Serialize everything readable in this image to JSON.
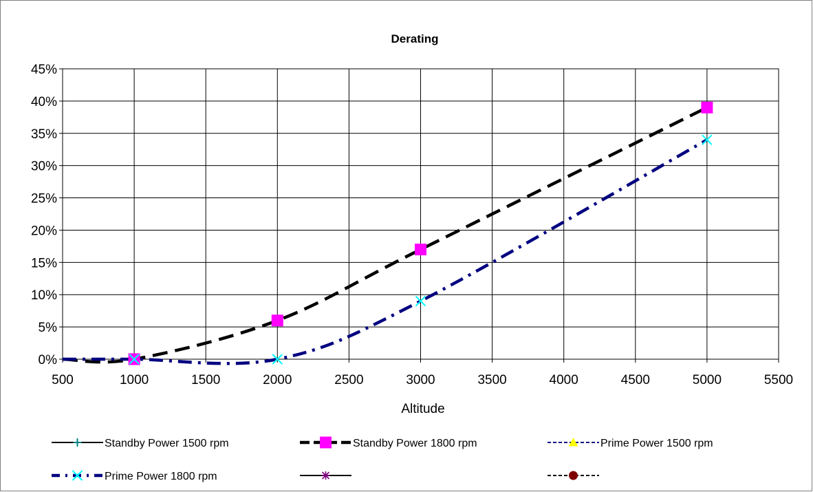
{
  "chart_data": {
    "type": "line",
    "title": "Derating",
    "xlabel": "Altitude",
    "ylabel": "",
    "xlim": [
      500,
      5500
    ],
    "ylim": [
      0,
      0.45
    ],
    "x_ticks": [
      "500",
      "1000",
      "1500",
      "2000",
      "2500",
      "3000",
      "3500",
      "4000",
      "4500",
      "5000",
      "5500"
    ],
    "y_ticks": [
      "0%",
      "5%",
      "10%",
      "15%",
      "20%",
      "25%",
      "30%",
      "35%",
      "40%",
      "45%"
    ],
    "grid": true,
    "legend_position": "bottom",
    "series": [
      {
        "name": "Standby Power 1500 rpm",
        "color": "#000000",
        "marker_color": "#008080",
        "line_style": "solid-thin",
        "marker": "plus",
        "points": []
      },
      {
        "name": "Standby Power 1800 rpm",
        "color": "#000000",
        "marker_color": "#ff00ff",
        "line_style": "dash-thick",
        "marker": "square",
        "points": [
          [
            500,
            0
          ],
          [
            1000,
            0
          ],
          [
            2000,
            0.06
          ],
          [
            3000,
            0.17
          ],
          [
            5000,
            0.39
          ]
        ]
      },
      {
        "name": "Prime Power 1500 rpm",
        "color": "#000080",
        "marker_color": "#ffff00",
        "line_style": "dash-thin",
        "marker": "triangle",
        "points": []
      },
      {
        "name": "Prime Power 1800 rpm",
        "color": "#000080",
        "marker_color": "#00ffff",
        "line_style": "dashdot-thick",
        "marker": "x",
        "points": [
          [
            500,
            0
          ],
          [
            1000,
            0
          ],
          [
            2000,
            0
          ],
          [
            3000,
            0.09
          ],
          [
            5000,
            0.34
          ]
        ]
      },
      {
        "name": "",
        "color": "#000000",
        "marker_color": "#800080",
        "line_style": "solid-thin",
        "marker": "star",
        "points": []
      },
      {
        "name": "",
        "color": "#000000",
        "marker_color": "#800000",
        "line_style": "dash-thin",
        "marker": "circle",
        "points": []
      }
    ]
  }
}
